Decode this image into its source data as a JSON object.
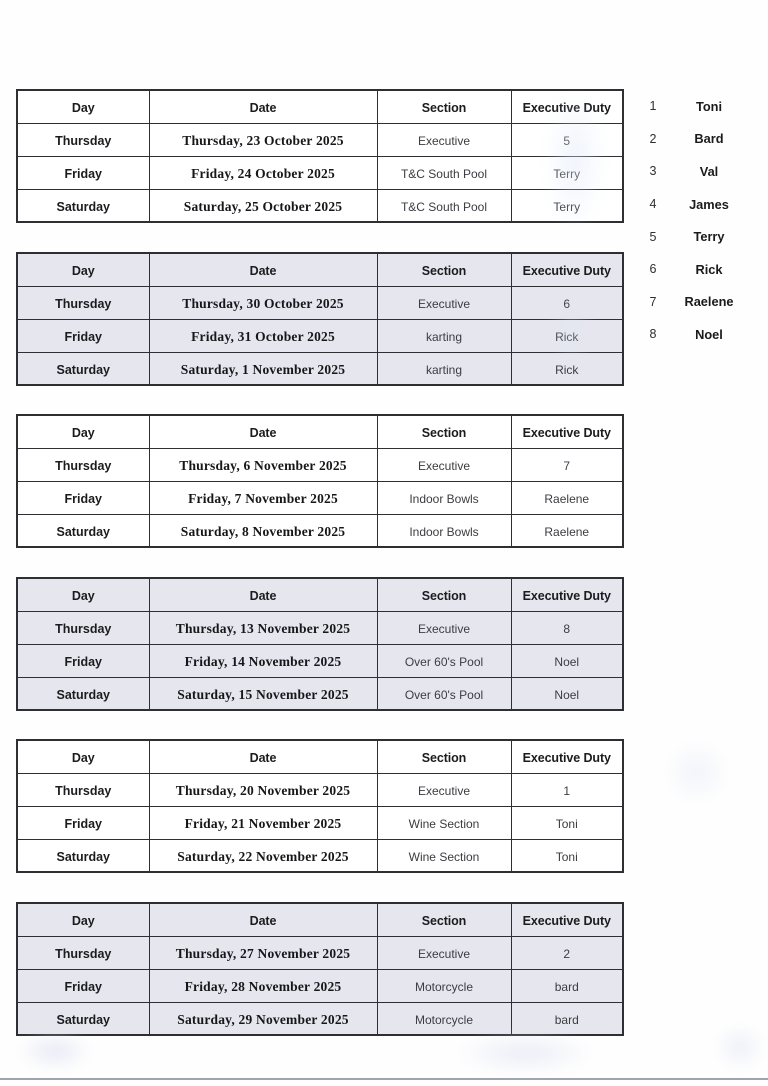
{
  "document": {
    "columns": [
      "Day",
      "Date",
      "Section",
      "Executive Duty"
    ],
    "tables": [
      {
        "rows": [
          [
            "Thursday",
            "Thursday, 23 October 2025",
            "Executive",
            "5"
          ],
          [
            "Friday",
            "Friday, 24 October 2025",
            "T&C South Pool",
            "Terry"
          ],
          [
            "Saturday",
            "Saturday, 25 October 2025",
            "T&C South Pool",
            "Terry"
          ]
        ]
      },
      {
        "rows": [
          [
            "Thursday",
            "Thursday, 30 October 2025",
            "Executive",
            "6"
          ],
          [
            "Friday",
            "Friday, 31 October 2025",
            "karting",
            "Rick"
          ],
          [
            "Saturday",
            "Saturday, 1 November 2025",
            "karting",
            "Rick"
          ]
        ]
      },
      {
        "rows": [
          [
            "Thursday",
            "Thursday, 6 November 2025",
            "Executive",
            "7"
          ],
          [
            "Friday",
            "Friday, 7 November 2025",
            "Indoor Bowls",
            "Raelene"
          ],
          [
            "Saturday",
            "Saturday, 8 November 2025",
            "Indoor Bowls",
            "Raelene"
          ]
        ]
      },
      {
        "rows": [
          [
            "Thursday",
            "Thursday, 13 November 2025",
            "Executive",
            "8"
          ],
          [
            "Friday",
            "Friday, 14 November 2025",
            "Over 60's Pool",
            "Noel"
          ],
          [
            "Saturday",
            "Saturday, 15 November 2025",
            "Over 60's Pool",
            "Noel"
          ]
        ]
      },
      {
        "rows": [
          [
            "Thursday",
            "Thursday, 20 November 2025",
            "Executive",
            "1"
          ],
          [
            "Friday",
            "Friday, 21 November 2025",
            "Wine Section",
            "Toni"
          ],
          [
            "Saturday",
            "Saturday, 22 November 2025",
            "Wine Section",
            "Toni"
          ]
        ]
      },
      {
        "rows": [
          [
            "Thursday",
            "Thursday, 27 November 2025",
            "Executive",
            "2"
          ],
          [
            "Friday",
            "Friday, 28 November 2025",
            "Motorcycle",
            "bard"
          ],
          [
            "Saturday",
            "Saturday, 29 November 2025",
            "Motorcycle",
            "bard"
          ]
        ]
      }
    ],
    "legend": [
      {
        "num": "1",
        "name": "Toni"
      },
      {
        "num": "2",
        "name": "Bard"
      },
      {
        "num": "3",
        "name": "Val"
      },
      {
        "num": "4",
        "name": "James"
      },
      {
        "num": "5",
        "name": "Terry"
      },
      {
        "num": "6",
        "name": "Rick"
      },
      {
        "num": "7",
        "name": "Raelene"
      },
      {
        "num": "8",
        "name": "Noel"
      }
    ],
    "colors": {
      "shaded_table_fill": "#e6e6ee",
      "table_border": "#2f2f33",
      "bottom_rule": "#a0a5ad"
    }
  }
}
